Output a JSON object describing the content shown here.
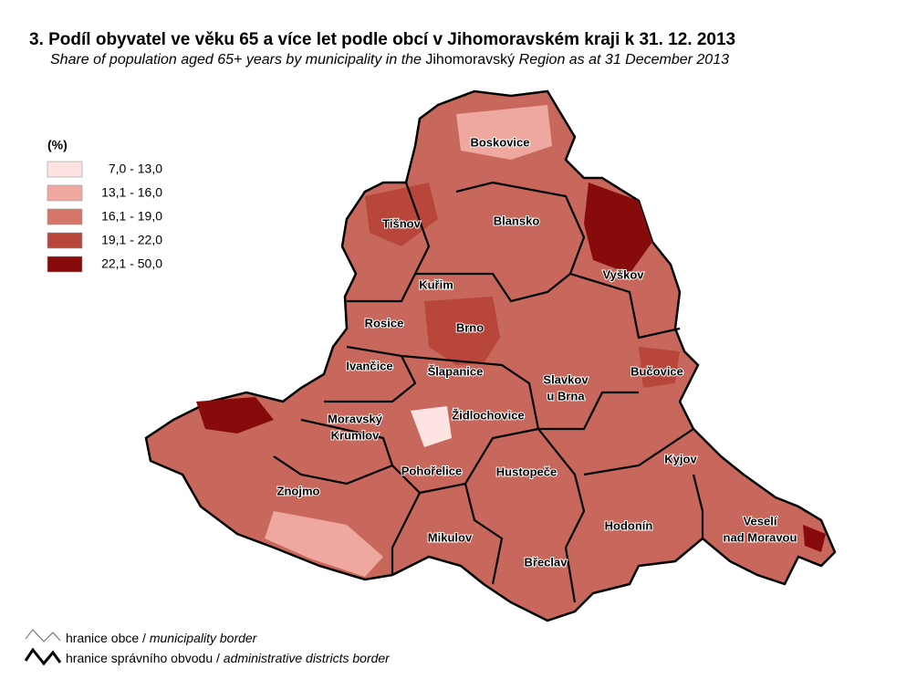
{
  "title": "3. Podíl obyvatel ve věku 65 a více let podle obcí v Jihomoravském kraji k 31. 12. 2013",
  "subtitle": [
    "Share of population aged 65+ years by municipality in the ",
    "Jihomoravský",
    " Region as at 31 December 2013"
  ],
  "legend": {
    "title": "(%)",
    "items": [
      {
        "label": "7,0 - 13,0",
        "color": "#fde3e1"
      },
      {
        "label": "13,1 - 16,0",
        "color": "#eea89f"
      },
      {
        "label": "16,1 - 19,0",
        "color": "#d6766a"
      },
      {
        "label": "19,1 - 22,0",
        "color": "#b8463b"
      },
      {
        "label": "22,1 - 50,0",
        "color": "#870b0b"
      }
    ]
  },
  "districts": [
    {
      "lines": [
        "Boskovice"
      ]
    },
    {
      "lines": [
        "Tišnov"
      ]
    },
    {
      "lines": [
        "Blansko"
      ]
    },
    {
      "lines": [
        "Vyškov"
      ]
    },
    {
      "lines": [
        "Kuřim"
      ]
    },
    {
      "lines": [
        "Rosice"
      ]
    },
    {
      "lines": [
        "Brno"
      ]
    },
    {
      "lines": [
        "Ivančice"
      ]
    },
    {
      "lines": [
        "Šlapanice"
      ]
    },
    {
      "lines": [
        "Slavkov",
        "u Brna"
      ]
    },
    {
      "lines": [
        "Bučovice"
      ]
    },
    {
      "lines": [
        "Židlochovice"
      ]
    },
    {
      "lines": [
        "Moravský",
        "Krumlov"
      ]
    },
    {
      "lines": [
        "Kyjov"
      ]
    },
    {
      "lines": [
        "Pohořelice"
      ]
    },
    {
      "lines": [
        "Hustopeče"
      ]
    },
    {
      "lines": [
        "Znojmo"
      ]
    },
    {
      "lines": [
        "Hodonín"
      ]
    },
    {
      "lines": [
        "Veselí",
        "nad Moravou"
      ]
    },
    {
      "lines": [
        "Mikulov"
      ]
    },
    {
      "lines": [
        "Břeclav"
      ]
    }
  ],
  "borders": [
    [
      "hranice obce / ",
      "municipality border"
    ],
    [
      "hranice správního obvodu / ",
      "administrative districts border"
    ]
  ]
}
